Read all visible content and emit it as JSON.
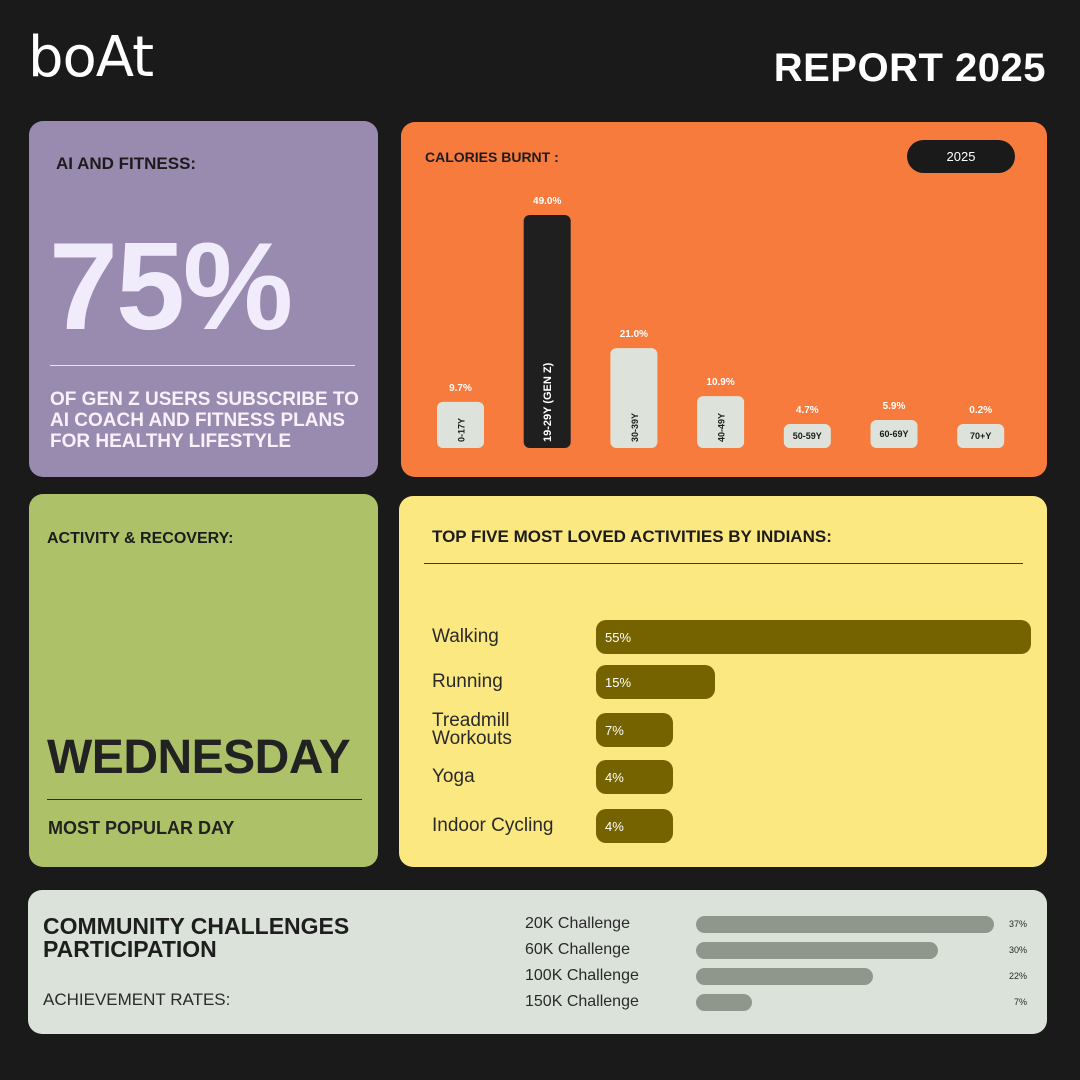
{
  "header": {
    "brand": "boAt",
    "title": "REPORT 2025"
  },
  "ai_fitness": {
    "heading": "AI AND FITNESS:",
    "percent": "75%",
    "description": "OF GEN Z USERS SUBSCRIBE TO AI COACH AND FITNESS PLANS FOR HEALTHY LIFESTYLE"
  },
  "calories": {
    "heading": "CALORIES BURNT :",
    "year": "2025"
  },
  "activity": {
    "heading": "ACTIVITY & RECOVERY:",
    "day": "WEDNESDAY",
    "subtitle": "MOST POPULAR DAY"
  },
  "top_activities": {
    "heading": "TOP FIVE MOST LOVED ACTIVITIES BY INDIANS:"
  },
  "community": {
    "heading": "COMMUNITY CHALLENGES PARTICIPATION",
    "subtitle": "ACHIEVEMENT RATES:"
  },
  "colors": {
    "background": "#1a1a1a",
    "ai_card": "#998aaf",
    "calories_card": "#f77b3d",
    "activity_card": "#adc268",
    "top_card": "#fce880",
    "community_card": "#dbe2da",
    "highlight_bar": "#1f1f1f",
    "normal_bar": "#dde3db",
    "activity_bar": "#756300",
    "challenge_bar": "#8f978d"
  },
  "chart_data": [
    {
      "type": "bar",
      "title": "CALORIES BURNT :",
      "categories": [
        "0-17Y",
        "19-29Y (GEN Z)",
        "30-39Y",
        "40-49Y",
        "50-59Y",
        "60-69Y",
        "70+Y"
      ],
      "values": [
        9.7,
        49.0,
        21.0,
        10.9,
        4.7,
        5.9,
        0.2
      ],
      "value_labels": [
        "9.7%",
        "49.0%",
        "21.0%",
        "10.9%",
        "4.7%",
        "5.9%",
        "0.2%"
      ],
      "highlight_index": 1,
      "unit": "%",
      "ylim": [
        0,
        49
      ],
      "grid": false
    },
    {
      "type": "bar",
      "orientation": "horizontal",
      "title": "TOP FIVE MOST LOVED ACTIVITIES BY INDIANS:",
      "categories": [
        "Walking",
        "Running",
        "Treadmill Workouts",
        "Yoga",
        "Indoor Cycling"
      ],
      "values": [
        55,
        15,
        7,
        4,
        4
      ],
      "value_labels": [
        "55%",
        "15%",
        "7%",
        "4%",
        "4%"
      ],
      "unit": "%"
    },
    {
      "type": "bar",
      "orientation": "horizontal",
      "title": "COMMUNITY CHALLENGES PARTICIPATION",
      "categories": [
        "20K Challenge",
        "60K Challenge",
        "100K Challenge",
        "150K Challenge"
      ],
      "values": [
        37,
        30,
        22,
        7
      ],
      "value_labels": [
        "37%",
        "30%",
        "22%",
        "7%"
      ],
      "unit": "%",
      "xlim": [
        0,
        37
      ]
    }
  ]
}
